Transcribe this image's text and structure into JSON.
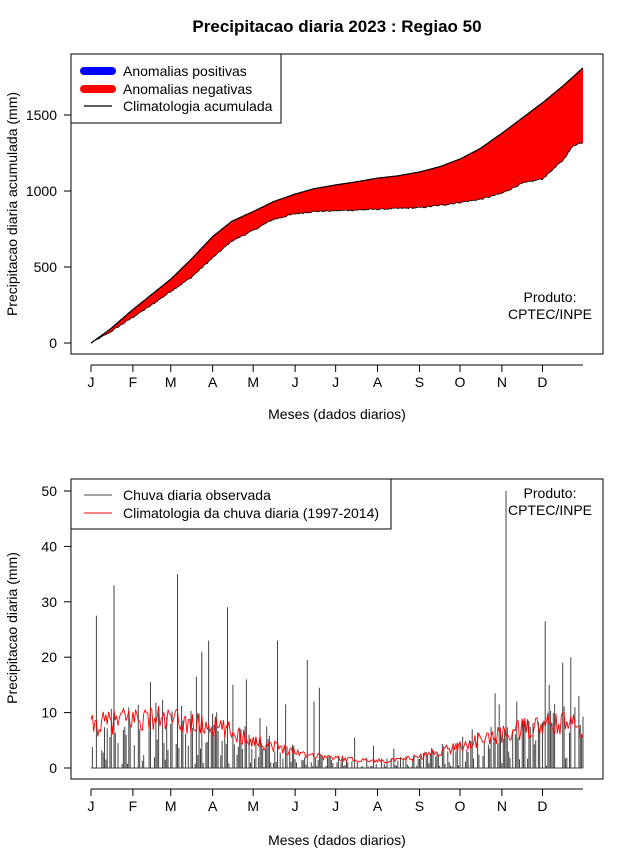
{
  "title": "Precipitacao diaria 2023 : Regiao 50",
  "chart_data": [
    {
      "type": "area",
      "ylabel": "Precipitacao diaria acumulada (mm)",
      "xlabel": "Meses (dados diarios)",
      "ylim": [
        0,
        1850
      ],
      "xlim": [
        1,
        365
      ],
      "yticks": [
        "0",
        "500",
        "1000",
        "1500"
      ],
      "ytick_values": [
        0,
        500,
        1000,
        1500
      ],
      "months": [
        "J",
        "F",
        "M",
        "A",
        "M",
        "J",
        "J",
        "A",
        "S",
        "O",
        "N",
        "D"
      ],
      "month_days": [
        1,
        32,
        60,
        91,
        121,
        152,
        182,
        213,
        244,
        274,
        305,
        335
      ],
      "legend": [
        "Anomalias positivas",
        "Anomalias negativas",
        "Climatologia acumulada"
      ],
      "legend_colors": [
        "#0000ff",
        "#ff0000",
        "#000000"
      ],
      "note": [
        "Produto:",
        "CPTEC/INPE"
      ],
      "climatology": {
        "days": [
          1,
          15,
          32,
          46,
          60,
          75,
          91,
          105,
          121,
          136,
          152,
          166,
          182,
          197,
          213,
          228,
          244,
          259,
          274,
          289,
          305,
          320,
          335,
          350,
          365
        ],
        "values": [
          0,
          90,
          220,
          320,
          420,
          550,
          700,
          800,
          865,
          930,
          980,
          1015,
          1040,
          1060,
          1085,
          1100,
          1125,
          1160,
          1210,
          1280,
          1380,
          1480,
          1580,
          1690,
          1810
        ]
      },
      "observed": {
        "days": [
          1,
          15,
          32,
          46,
          60,
          75,
          91,
          105,
          121,
          135,
          152,
          166,
          182,
          197,
          213,
          228,
          244,
          259,
          274,
          289,
          305,
          320,
          335,
          350,
          358,
          365
        ],
        "values": [
          0,
          70,
          170,
          250,
          340,
          430,
          560,
          670,
          740,
          810,
          850,
          865,
          870,
          875,
          880,
          885,
          890,
          905,
          925,
          945,
          985,
          1050,
          1080,
          1200,
          1300,
          1320
        ]
      }
    },
    {
      "type": "line",
      "ylabel": "Precipitacao diaria (mm)",
      "xlabel": "Meses (dados diarios)",
      "ylim": [
        0,
        51
      ],
      "xlim": [
        1,
        365
      ],
      "yticks": [
        "0",
        "10",
        "20",
        "30",
        "40",
        "50"
      ],
      "ytick_values": [
        0,
        10,
        20,
        30,
        40,
        50
      ],
      "months": [
        "J",
        "F",
        "M",
        "A",
        "M",
        "J",
        "J",
        "A",
        "S",
        "O",
        "N",
        "D"
      ],
      "month_days": [
        1,
        32,
        60,
        91,
        121,
        152,
        182,
        213,
        244,
        274,
        305,
        335
      ],
      "legend": [
        "Chuva diaria observada",
        "Climatologia da chuva diaria (1997-2014)"
      ],
      "legend_colors": [
        "#444444",
        "#ff0000"
      ],
      "note": [
        "Produto:",
        "CPTEC/INPE"
      ],
      "climatology_profile": {
        "days": [
          1,
          20,
          32,
          50,
          60,
          75,
          91,
          105,
          121,
          136,
          152,
          166,
          182,
          197,
          213,
          228,
          244,
          259,
          274,
          289,
          305,
          320,
          335,
          350,
          365
        ],
        "values": [
          7.5,
          8.5,
          9,
          9,
          8.5,
          8,
          7.5,
          6.5,
          5,
          4,
          3,
          2.3,
          1.8,
          1.5,
          1.3,
          1.4,
          2,
          3,
          4,
          5,
          6,
          7,
          7.5,
          8,
          7.5
        ]
      },
      "observed_peaks": {
        "days": [
          5,
          18,
          45,
          54,
          65,
          79,
          83,
          88,
          102,
          106,
          116,
          126,
          131,
          139,
          145,
          161,
          166,
          170,
          196,
          210,
          225,
          265,
          283,
          300,
          303,
          308,
          316,
          322,
          337,
          340,
          344,
          350,
          356,
          359,
          362
        ],
        "values": [
          27.5,
          33,
          15.5,
          12.3,
          35,
          16.5,
          21,
          23,
          29,
          15,
          16,
          9,
          7.5,
          23,
          11.5,
          19.5,
          12,
          14.5,
          5.5,
          4,
          3.5,
          3,
          7,
          13.5,
          11.5,
          50,
          12,
          9,
          26.5,
          15,
          11.5,
          19,
          20,
          11,
          13
        ]
      }
    }
  ]
}
